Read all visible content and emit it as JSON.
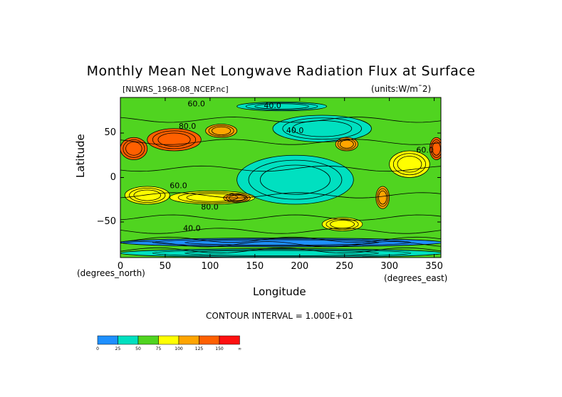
{
  "chart_data": {
    "type": "heatmap",
    "title": "Monthly Mean Net Longwave Radiation Flux at Surface",
    "file_label": "[NLWRS_1968-08_NCEP.nc]",
    "units_label": "(units:W/m¯2)",
    "xlabel": "Longitude",
    "ylabel": "Latitude",
    "x_unit": "(degrees_north)",
    "y_unit": "(degrees_east)",
    "xlim": [
      0,
      357.5
    ],
    "ylim": [
      -90,
      90
    ],
    "x_ticks": [
      0,
      50,
      100,
      150,
      200,
      250,
      300,
      350
    ],
    "y_ticks": [
      50,
      0,
      -50
    ],
    "y_tick_labels": [
      "50",
      "0",
      "−50"
    ],
    "contour_interval_label": "CONTOUR INTERVAL = 1.000E+01",
    "contour_labels": [
      "40.0",
      "40.0",
      "60.0",
      "80.0",
      "80.0",
      "60.0",
      "40.0",
      "60.0"
    ],
    "color_scale": {
      "bins": [
        "#1e90ff",
        "#00e0c0",
        "#50d420",
        "#ffff00",
        "#ffa500",
        "#ff6000",
        "#ff1010"
      ],
      "labels": [
        "0",
        "25",
        "50",
        "75",
        "100",
        "125",
        "150",
        "∞"
      ]
    },
    "regions": [
      {
        "lon": [
          0,
          360
        ],
        "lat": [
          -90,
          90
        ],
        "value": 55
      },
      {
        "lon": [
          130,
          260
        ],
        "lat": [
          -30,
          25
        ],
        "value": 40
      },
      {
        "lon": [
          170,
          280
        ],
        "lat": [
          40,
          70
        ],
        "value": 40
      },
      {
        "lon": [
          0,
          30
        ],
        "lat": [
          20,
          45
        ],
        "value": 140
      },
      {
        "lon": [
          30,
          90
        ],
        "lat": [
          30,
          55
        ],
        "value": 130
      },
      {
        "lon": [
          95,
          130
        ],
        "lat": [
          45,
          60
        ],
        "value": 110
      },
      {
        "lon": [
          5,
          55
        ],
        "lat": [
          -30,
          -10
        ],
        "value": 95
      },
      {
        "lon": [
          55,
          150
        ],
        "lat": [
          -30,
          -15
        ],
        "value": 85
      },
      {
        "lon": [
          115,
          145
        ],
        "lat": [
          -28,
          -18
        ],
        "value": 105
      },
      {
        "lon": [
          225,
          270
        ],
        "lat": [
          -60,
          -45
        ],
        "value": 80
      },
      {
        "lon": [
          240,
          265
        ],
        "lat": [
          30,
          45
        ],
        "value": 105
      },
      {
        "lon": [
          285,
          300
        ],
        "lat": [
          -35,
          -10
        ],
        "value": 120
      },
      {
        "lon": [
          0,
          360
        ],
        "lat": [
          -78,
          -68
        ],
        "value": 20
      },
      {
        "lon": [
          0,
          360
        ],
        "lat": [
          -90,
          -80
        ],
        "value": 30
      },
      {
        "lon": [
          130,
          230
        ],
        "lat": [
          75,
          85
        ],
        "value": 40
      },
      {
        "lon": [
          300,
          345
        ],
        "lat": [
          0,
          30
        ],
        "value": 75
      },
      {
        "lon": [
          345,
          360
        ],
        "lat": [
          20,
          45
        ],
        "value": 140
      }
    ]
  }
}
